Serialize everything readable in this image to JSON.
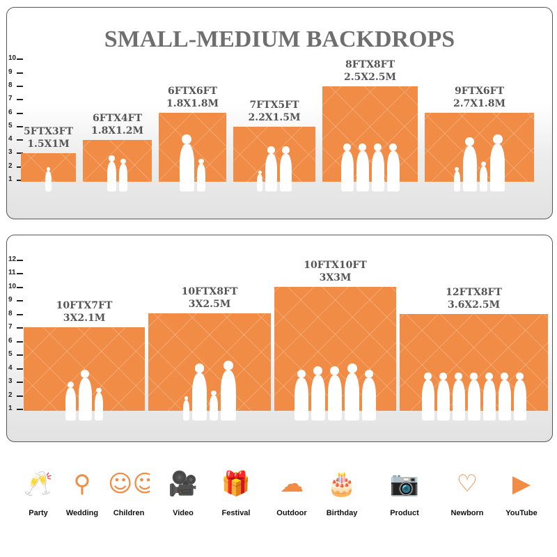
{
  "title": "SMALL-MEDIUM BACKDROPS",
  "accent_color": "#f08c45",
  "top_panel": {
    "ticks": [
      "1",
      "2",
      "3",
      "4",
      "5",
      "6",
      "7",
      "8",
      "9",
      "10"
    ],
    "sizes": [
      {
        "ft": "5FTX3FT",
        "m": "1.5X1M"
      },
      {
        "ft": "6FTX4FT",
        "m": "1.8X1.2M"
      },
      {
        "ft": "6FTX6FT",
        "m": "1.8X1.8M"
      },
      {
        "ft": "7FTX5FT",
        "m": "2.2X1.5M"
      },
      {
        "ft": "8FTX8FT",
        "m": "2.5X2.5M"
      },
      {
        "ft": "9FTX6FT",
        "m": "2.7X1.8M"
      }
    ]
  },
  "bottom_panel": {
    "ticks": [
      "1",
      "2",
      "3",
      "4",
      "5",
      "6",
      "7",
      "8",
      "9",
      "10",
      "11",
      "12"
    ],
    "sizes": [
      {
        "ft": "10FTX7FT",
        "m": "3X2.1M"
      },
      {
        "ft": "10FTX8FT",
        "m": "3X2.5M"
      },
      {
        "ft": "10FTX10FT",
        "m": "3X3M"
      },
      {
        "ft": "12FTX8FT",
        "m": "3.6X2.5M"
      }
    ]
  },
  "uses": [
    {
      "label": "Party",
      "icon": "toast-glasses-icon"
    },
    {
      "label": "Wedding",
      "icon": "wedding-couple-icon"
    },
    {
      "label": "Children",
      "icon": "children-faces-icon"
    },
    {
      "label": "Video",
      "icon": "video-camera-icon"
    },
    {
      "label": "Festival",
      "icon": "gift-box-icon"
    },
    {
      "label": "Outdoor",
      "icon": "cloud-icon"
    },
    {
      "label": "Birthday",
      "icon": "birthday-cake-icon"
    },
    {
      "label": "Product",
      "icon": "camera-icon"
    },
    {
      "label": "Newborn",
      "icon": "baby-onesie-icon"
    },
    {
      "label": "YouTube",
      "icon": "play-button-icon"
    }
  ]
}
